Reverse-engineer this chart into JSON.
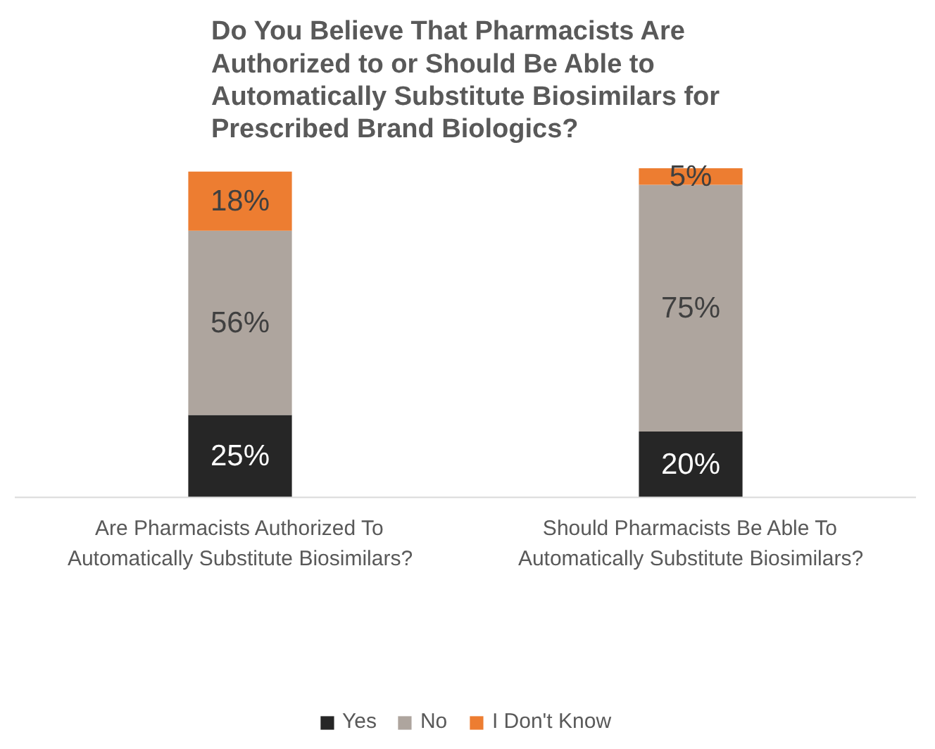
{
  "chart_data": {
    "type": "bar",
    "stacked": true,
    "title": "Do You Believe That Pharmacists Are Authorized to or Should Be Able to Automatically Substitute Biosimilars for Prescribed Brand Biologics?",
    "categories": [
      "Are Pharmacists Authorized To Automatically Substitute Biosimilars?",
      "Should Pharmacists Be Able To Automatically Substitute Biosimilars?"
    ],
    "series": [
      {
        "name": "Yes",
        "color": "#262626",
        "values": [
          25,
          20
        ],
        "value_labels": [
          "25%",
          "20%"
        ]
      },
      {
        "name": "No",
        "color": "#aea59e",
        "values": [
          56,
          75
        ],
        "value_labels": [
          "56%",
          "75%"
        ]
      },
      {
        "name": "I Don't Know",
        "color": "#ed7d31",
        "values": [
          18,
          5
        ],
        "value_labels": [
          "18%",
          "5%"
        ]
      }
    ],
    "legend": "bottom",
    "grid": false
  }
}
